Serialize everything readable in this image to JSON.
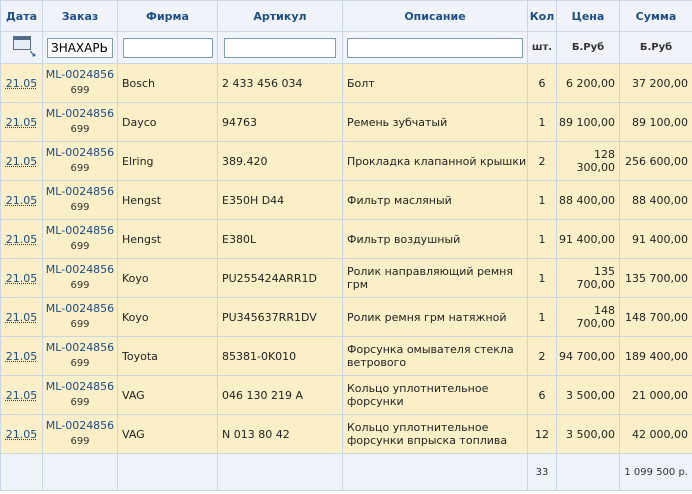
{
  "columns": {
    "date": "Дата",
    "order": "Заказ",
    "firm": "Фирма",
    "article": "Артикул",
    "description": "Описание",
    "qty": "Кол",
    "price": "Цена",
    "sum": "Сумма"
  },
  "filters": {
    "order_value": "ЗНАХАРЬ",
    "firm_value": "",
    "article_value": "",
    "description_value": ""
  },
  "units": {
    "qty": "шт.",
    "price": "Б.Руб",
    "sum": "Б.Руб"
  },
  "rows": [
    {
      "date": "21.05",
      "order": "ML-0024856",
      "order_sub": "699",
      "firm": "Bosch",
      "article": "2 433 456 034",
      "description": "Болт",
      "qty": "6",
      "price": "6 200,00",
      "sum": "37 200,00"
    },
    {
      "date": "21.05",
      "order": "ML-0024856",
      "order_sub": "699",
      "firm": "Dayco",
      "article": "94763",
      "description": "Ремень зубчатый",
      "qty": "1",
      "price": "89 100,00",
      "sum": "89 100,00"
    },
    {
      "date": "21.05",
      "order": "ML-0024856",
      "order_sub": "699",
      "firm": "Elring",
      "article": "389.420",
      "description": "Прокладка клапанной крышки",
      "qty": "2",
      "price": "128 300,00",
      "sum": "256 600,00"
    },
    {
      "date": "21.05",
      "order": "ML-0024856",
      "order_sub": "699",
      "firm": "Hengst",
      "article": "E350H D44",
      "description": "Фильтр масляный",
      "qty": "1",
      "price": "88 400,00",
      "sum": "88 400,00"
    },
    {
      "date": "21.05",
      "order": "ML-0024856",
      "order_sub": "699",
      "firm": "Hengst",
      "article": "E380L",
      "description": "Фильтр воздушный",
      "qty": "1",
      "price": "91 400,00",
      "sum": "91 400,00"
    },
    {
      "date": "21.05",
      "order": "ML-0024856",
      "order_sub": "699",
      "firm": "Koyo",
      "article": "PU255424ARR1D",
      "description": "Ролик направляющий ремня грм",
      "qty": "1",
      "price": "135 700,00",
      "sum": "135 700,00"
    },
    {
      "date": "21.05",
      "order": "ML-0024856",
      "order_sub": "699",
      "firm": "Koyo",
      "article": "PU345637RR1DV",
      "description": "Ролик ремня грм натяжной",
      "qty": "1",
      "price": "148 700,00",
      "sum": "148 700,00"
    },
    {
      "date": "21.05",
      "order": "ML-0024856",
      "order_sub": "699",
      "firm": "Toyota",
      "article": "85381-0K010",
      "description": "Форсунка омывателя стекла ветрового",
      "qty": "2",
      "price": "94 700,00",
      "sum": "189 400,00"
    },
    {
      "date": "21.05",
      "order": "ML-0024856",
      "order_sub": "699",
      "firm": "VAG",
      "article": "046 130 219 A",
      "description": "Кольцо уплотнительное форсунки",
      "qty": "6",
      "price": "3 500,00",
      "sum": "21 000,00"
    },
    {
      "date": "21.05",
      "order": "ML-0024856",
      "order_sub": "699",
      "firm": "VAG",
      "article": "N 013 80 42",
      "description": "Кольцо уплотнительное форсунки впрыска топлива",
      "qty": "12",
      "price": "3 500,00",
      "sum": "42 000,00"
    }
  ],
  "totals": {
    "qty": "33",
    "sum": "1 099 500 р."
  }
}
